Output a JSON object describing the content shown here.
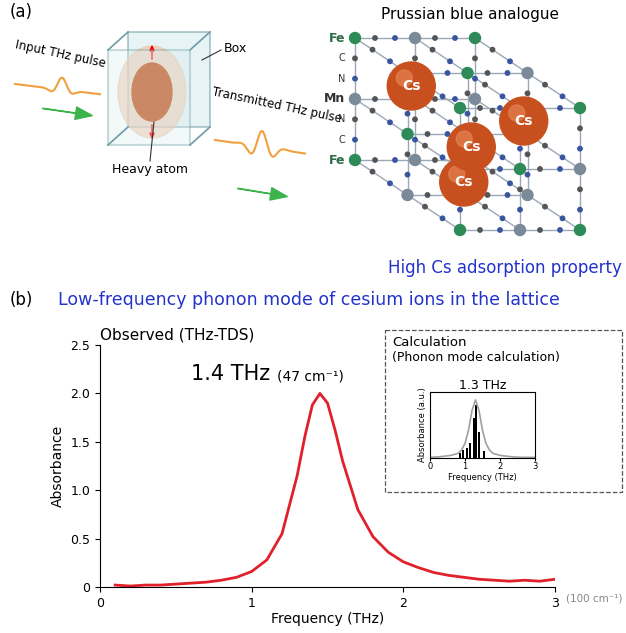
{
  "diagram": {
    "panel_a": {
      "label": "(a)",
      "input_pulse": "Input THz pulse",
      "box": "Box",
      "heavy_atom": "Heavy atom",
      "transmitted_pulse": "Transmitted THz pulse",
      "lattice": {
        "title": "Prussian blue analogue",
        "atom_labels": [
          "Fe",
          "C",
          "N",
          "Mn",
          "N",
          "C",
          "Fe"
        ],
        "cation": "Cs",
        "caption": "High Cs adsorption property"
      }
    },
    "panel_b": {
      "label": "(b)",
      "title": "Low-frequency phonon mode of cesium ions in the lattice"
    }
  },
  "chart_data": [
    {
      "type": "line",
      "title": "Observed (THz-TDS)",
      "xlabel": "Frequency (THz)",
      "ylabel": "Absorbance",
      "x": [
        0.1,
        0.2,
        0.3,
        0.4,
        0.5,
        0.6,
        0.7,
        0.8,
        0.9,
        1.0,
        1.1,
        1.2,
        1.3,
        1.35,
        1.4,
        1.45,
        1.5,
        1.55,
        1.6,
        1.7,
        1.8,
        1.9,
        2.0,
        2.1,
        2.2,
        2.3,
        2.4,
        2.5,
        2.6,
        2.7,
        2.8,
        2.9,
        3.0
      ],
      "values": [
        0.02,
        0.01,
        0.02,
        0.02,
        0.03,
        0.04,
        0.05,
        0.07,
        0.1,
        0.16,
        0.28,
        0.55,
        1.15,
        1.55,
        1.88,
        2.0,
        1.9,
        1.62,
        1.3,
        0.8,
        0.52,
        0.36,
        0.26,
        0.2,
        0.15,
        0.12,
        0.1,
        0.08,
        0.07,
        0.06,
        0.07,
        0.06,
        0.08
      ],
      "color": "#e0202a",
      "xlim": [
        0,
        3
      ],
      "ylim": [
        0,
        2.5
      ],
      "xticks": [
        0,
        1,
        2,
        3
      ],
      "yticks": [
        0,
        0.5,
        1.0,
        1.5,
        2.0,
        2.5
      ],
      "annotations": [
        "1.4 THz",
        "(47 cm⁻¹)",
        "(100 cm⁻¹)"
      ]
    },
    {
      "type": "bar",
      "title": "1.3 THz",
      "annotations": [
        "Calculation",
        "(Phonon mode calculation)"
      ],
      "xlabel": "Frequency (THz)",
      "ylabel": "Absorbance (a.u.)",
      "xlim": [
        0,
        3
      ],
      "ylim": [
        0,
        1
      ],
      "xticks": [
        0,
        1,
        2,
        3
      ],
      "tick_labels": "x",
      "series": [
        {
          "type": "bar",
          "color": "#000000",
          "x": [
            0.85,
            0.95,
            1.05,
            1.15,
            1.25,
            1.32,
            1.4,
            1.55
          ],
          "values": [
            0.08,
            0.12,
            0.15,
            0.22,
            0.6,
            0.8,
            0.4,
            0.1
          ]
        },
        {
          "type": "line",
          "color": "#a0a0a0",
          "x": [
            0,
            0.3,
            0.6,
            0.8,
            0.9,
            1.0,
            1.1,
            1.2,
            1.3,
            1.4,
            1.5,
            1.6,
            1.7,
            1.8,
            2.0,
            2.3,
            2.6,
            3.0
          ],
          "values": [
            0.01,
            0.02,
            0.04,
            0.07,
            0.12,
            0.22,
            0.42,
            0.72,
            0.88,
            0.72,
            0.42,
            0.22,
            0.12,
            0.07,
            0.04,
            0.02,
            0.01,
            0.01
          ]
        }
      ]
    }
  ]
}
